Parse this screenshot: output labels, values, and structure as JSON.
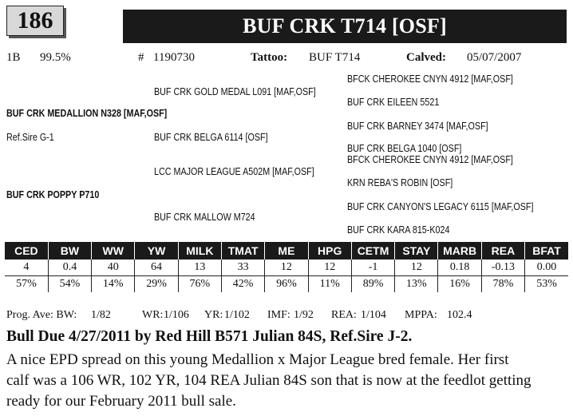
{
  "lot_number": "186",
  "animal_name": "BUF CRK T714 [OSF]",
  "info": {
    "breed_code": "1B",
    "percent": "99.5%",
    "reg_prefix": "#",
    "reg_number": "1190730",
    "tattoo_label": "Tattoo:",
    "tattoo": "BUF T714",
    "calved_label": "Calved:",
    "calved": "05/07/2007"
  },
  "pedigree": {
    "sss": "BFCK CHEROKEE CNYN 4912 [MAF,OSF]",
    "ss": "BUF CRK GOLD MEDAL L091 [MAF,OSF]",
    "ssd": "BUF CRK EILEEN 5521",
    "sire": "BUF CRK MEDALLION N328 [MAF,OSF]",
    "ref_sire": "Ref.Sire G-1",
    "sds": "BUF CRK BARNEY 3474 [MAF,OSF]",
    "sd": "BUF CRK BELGA 6114  [OSF]",
    "sdd": "BUF CRK BELGA 1040  [OSF]",
    "dss": "BFCK CHEROKEE CNYN 4912  [MAF,OSF]",
    "ds": "LCC MAJOR LEAGUE A502M [MAF,OSF]",
    "dsd": "KRN REBA'S ROBIN [OSF]",
    "dam": "BUF CRK POPPY P710",
    "dds": "BUF CRK CANYON'S LEGACY 6115 [MAF,OSF]",
    "dd": "BUF CRK MALLOW M724",
    "ddd": "BUF CRK KARA 815-K024"
  },
  "epd": {
    "headers": [
      "CED",
      "BW",
      "WW",
      "YW",
      "MILK",
      "TMAT",
      "ME",
      "HPG",
      "CETM",
      "STAY",
      "MARB",
      "REA",
      "BFAT"
    ],
    "values": [
      "4",
      "0.4",
      "40",
      "64",
      "13",
      "33",
      "12",
      "12",
      "-1",
      "12",
      "0.18",
      "-0.13",
      "0.00"
    ],
    "percentiles": [
      "57%",
      "54%",
      "14%",
      "29%",
      "76%",
      "42%",
      "96%",
      "11%",
      "89%",
      "13%",
      "16%",
      "78%",
      "53%"
    ]
  },
  "progeny": {
    "bw_label": "Prog. Ave: BW:",
    "bw": "1/82",
    "wr_label": "WR:",
    "wr": "1/106",
    "yr_label": "YR:",
    "yr": "1/102",
    "imf_label": "IMF:",
    "imf": "1/92",
    "rea_label": "REA:",
    "rea": "1/104",
    "mppa_label": "MPPA:",
    "mppa": "102.4"
  },
  "headline": "Bull Due 4/27/2011 by Red Hill B571 Julian 84S, Ref.Sire J-2.",
  "description": [
    "A nice EPD spread on this young Medallion x Major League bred female.  Her first",
    "calf was a 106 WR, 102 YR, 104 REA Julian 84S son that is now at the feedlot getting",
    "ready for our February 2011 bull sale."
  ]
}
